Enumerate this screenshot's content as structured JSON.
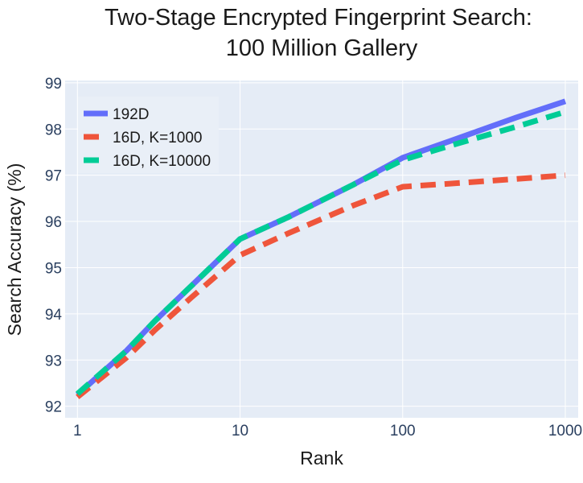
{
  "chart_data": {
    "type": "line",
    "title_line1": "Two-Stage Encrypted Fingerprint Search:",
    "title_line2": "100 Million Gallery",
    "xlabel": "Rank",
    "ylabel": "Search Accuracy (%)",
    "x_scale": "log",
    "xlim": [
      0.84,
      1200
    ],
    "ylim": [
      91.75,
      99.05
    ],
    "x_ticks": [
      1,
      10,
      100,
      1000
    ],
    "x_tick_labels": [
      "1",
      "10",
      "100",
      "1000"
    ],
    "y_ticks": [
      92,
      93,
      94,
      95,
      96,
      97,
      98,
      99
    ],
    "y_tick_labels": [
      "92",
      "93",
      "94",
      "95",
      "96",
      "97",
      "98",
      "99"
    ],
    "grid": true,
    "legend_position": "top-left",
    "series": [
      {
        "name": "192D",
        "color": "#636efa",
        "dash": "solid",
        "x": [
          1,
          2,
          3,
          5,
          10,
          20,
          50,
          100,
          200,
          500,
          1000
        ],
        "y": [
          92.25,
          93.2,
          93.85,
          94.6,
          95.62,
          96.1,
          96.8,
          97.38,
          97.75,
          98.25,
          98.6
        ]
      },
      {
        "name": "16D, K=1000",
        "color": "#ef553b",
        "dash": "dash",
        "x": [
          1,
          2,
          3,
          5,
          10,
          20,
          50,
          100,
          200,
          500,
          1000
        ],
        "y": [
          92.2,
          93.05,
          93.65,
          94.35,
          95.27,
          95.75,
          96.35,
          96.75,
          96.82,
          96.92,
          97.0
        ]
      },
      {
        "name": "16D, K=10000",
        "color": "#00cc96",
        "dash": "dash",
        "x": [
          1,
          2,
          3,
          5,
          10,
          20,
          50,
          100,
          200,
          500,
          1000
        ],
        "y": [
          92.27,
          93.2,
          93.85,
          94.6,
          95.62,
          96.1,
          96.8,
          97.33,
          97.65,
          98.05,
          98.37
        ]
      }
    ]
  }
}
